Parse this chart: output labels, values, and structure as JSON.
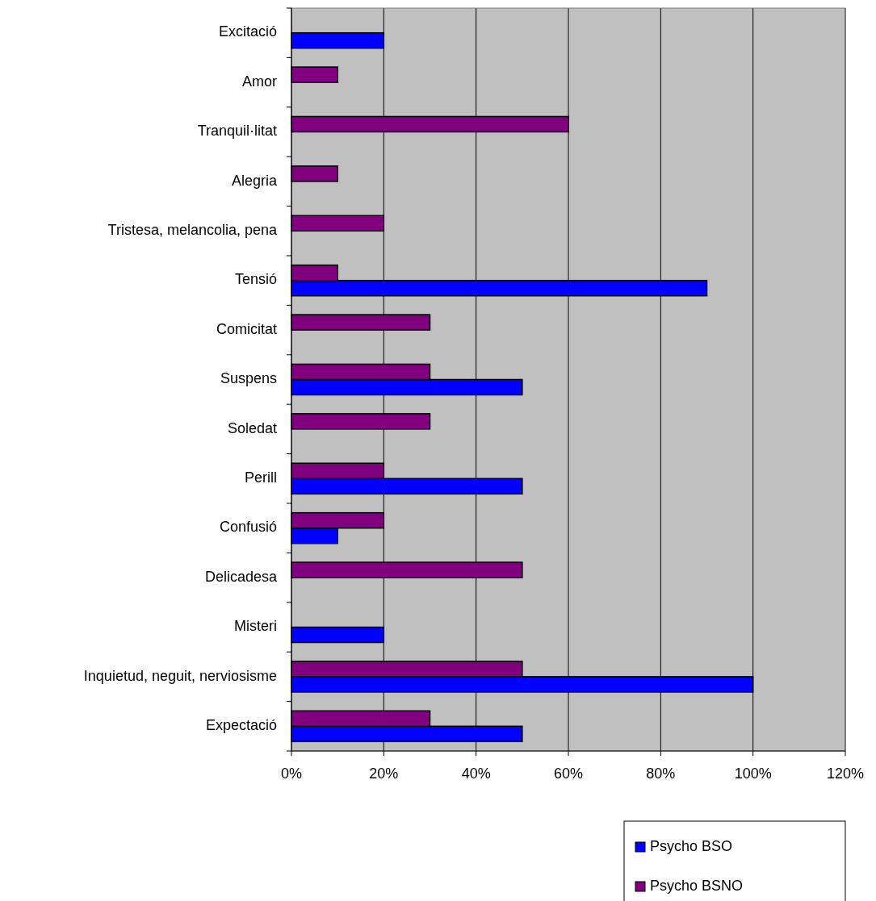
{
  "chart_data": {
    "type": "bar",
    "orientation": "horizontal",
    "categories": [
      "Excitació",
      "Amor",
      "Tranquil·litat",
      "Alegria",
      "Tristesa, melancolia, pena",
      "Tensió",
      "Comicitat",
      "Suspens",
      "Soledat",
      "Perill",
      "Confusió",
      "Delicadesa",
      "Misteri",
      "Inquietud, neguit, nerviosisme",
      "Expectació"
    ],
    "series": [
      {
        "name": "Psycho BSO",
        "color": "#0000ff",
        "values": [
          20,
          null,
          null,
          null,
          null,
          90,
          null,
          50,
          null,
          50,
          10,
          null,
          20,
          100,
          50
        ]
      },
      {
        "name": "Psycho BSNO",
        "color": "#800080",
        "values": [
          null,
          10,
          60,
          10,
          20,
          10,
          30,
          30,
          30,
          20,
          20,
          50,
          null,
          50,
          30
        ]
      }
    ],
    "xlim": [
      0,
      120
    ],
    "xticks": [
      {
        "value": 0,
        "label": "0%"
      },
      {
        "value": 20,
        "label": "20%"
      },
      {
        "value": 40,
        "label": "40%"
      },
      {
        "value": 60,
        "label": "60%"
      },
      {
        "value": 80,
        "label": "80%"
      },
      {
        "value": 100,
        "label": "100%"
      },
      {
        "value": 120,
        "label": "120%"
      }
    ],
    "grid": "x",
    "legend": "bottom right"
  }
}
